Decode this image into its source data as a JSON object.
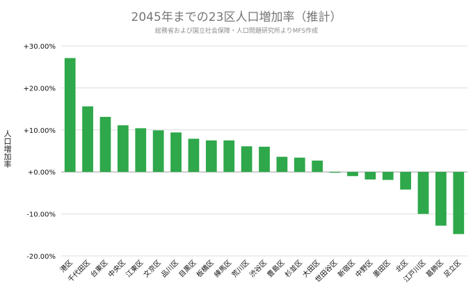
{
  "chart_data": {
    "type": "bar",
    "title": "2045年までの23区人口増加率（推計）",
    "subtitle": "総務省および国立社会保障・人口問題研究所よりMFS作成",
    "ylabel": "人口増加率",
    "xlabel": "",
    "ylim": [
      -20,
      30
    ],
    "yticks": [
      30,
      20,
      10,
      0,
      -10,
      -20
    ],
    "ytick_labels": [
      "+30.00%",
      "+20.00%",
      "+10.00%",
      "+0.00%",
      "-10.00%",
      "-20.00%"
    ],
    "grid": true,
    "bar_color": "#2ea84a",
    "categories": [
      "港区",
      "千代田区",
      "台東区",
      "中央区",
      "江東区",
      "文京区",
      "品川区",
      "目黒区",
      "板橋区",
      "練馬区",
      "荒川区",
      "渋谷区",
      "豊島区",
      "杉並区",
      "大田区",
      "世田谷区",
      "新宿区",
      "中野区",
      "墨田区",
      "北区",
      "江戸川区",
      "葛飾区",
      "足立区"
    ],
    "values": [
      27.1,
      15.6,
      13.1,
      11.1,
      10.4,
      9.9,
      9.4,
      7.9,
      7.5,
      7.5,
      6.1,
      6.0,
      3.6,
      3.4,
      2.7,
      -0.2,
      -1.0,
      -1.8,
      -1.9,
      -4.2,
      -10.0,
      -12.8,
      -14.8
    ]
  }
}
